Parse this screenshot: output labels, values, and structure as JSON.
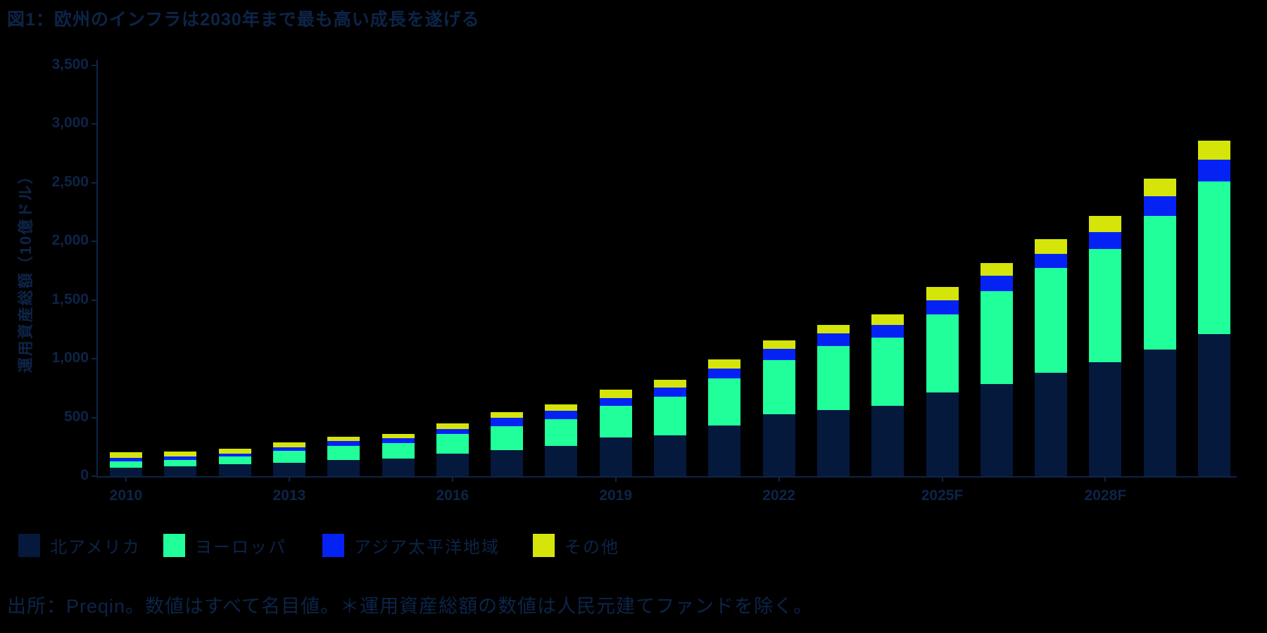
{
  "title": "図1：欧州のインフラは2030年まで最も高い成長を遂げる",
  "footer": "出所：Preqin。数値はすべて名目値。＊運用資産総額の数値は人民元建てファンドを除く。",
  "colors": {
    "background": "#000000",
    "text_navy": "#0d2448",
    "north_america": "#05193d",
    "europe": "#21ff9a",
    "asia_pacific": "#0522f5",
    "other": "#d6e509"
  },
  "chart_data": {
    "type": "bar",
    "stacked": true,
    "title": "図1：欧州のインフラは2030年まで最も高い成長を遂げる",
    "xlabel": "",
    "ylabel": "運用資産総額（10億ドル）",
    "ylim": [
      0,
      3500
    ],
    "grid": false,
    "legend_position": "bottom",
    "y_ticks": [
      {
        "value": 0,
        "label": "0"
      },
      {
        "value": 500,
        "label": "500"
      },
      {
        "value": 1000,
        "label": "1,000"
      },
      {
        "value": 1500,
        "label": "1,500"
      },
      {
        "value": 2000,
        "label": "2,000"
      },
      {
        "value": 2500,
        "label": "2,500"
      },
      {
        "value": 3000,
        "label": "3,000"
      },
      {
        "value": 3500,
        "label": "3,500"
      }
    ],
    "categories": [
      "2010",
      "2011",
      "2012",
      "2013",
      "2014",
      "2015",
      "2016",
      "2017",
      "2018",
      "2019",
      "2020",
      "2021",
      "2022",
      "2023",
      "2024",
      "2025F",
      "2026F",
      "2027F",
      "2028F",
      "2029F",
      "2030F"
    ],
    "x_axis_labels": [
      {
        "index": 0,
        "label": "2010"
      },
      {
        "index": 3,
        "label": "2013"
      },
      {
        "index": 6,
        "label": "2016"
      },
      {
        "index": 9,
        "label": "2019"
      },
      {
        "index": 12,
        "label": "2022"
      },
      {
        "index": 15,
        "label": "2025F"
      },
      {
        "index": 18,
        "label": "2028F"
      }
    ],
    "series": [
      {
        "name": "北アメリカ",
        "color": "#05193d",
        "values": [
          72,
          85,
          100,
          115,
          135,
          148,
          192,
          222,
          256,
          327,
          349,
          432,
          526,
          565,
          601,
          711,
          787,
          882,
          972,
          1081,
          1211
        ]
      },
      {
        "name": "ヨーロッパ",
        "color": "#21ff9a",
        "values": [
          54,
          55,
          70,
          100,
          122,
          134,
          166,
          205,
          229,
          270,
          326,
          399,
          465,
          542,
          580,
          669,
          788,
          889,
          962,
          1136,
          1300
        ]
      },
      {
        "name": "アジア太平洋地域",
        "color": "#0522f5",
        "values": [
          30,
          26,
          22,
          30,
          45,
          43,
          44,
          69,
          72,
          68,
          82,
          84,
          96,
          110,
          109,
          120,
          133,
          120,
          148,
          170,
          183
        ]
      },
      {
        "name": "その他",
        "color": "#d6e509",
        "values": [
          46,
          42,
          44,
          43,
          32,
          36,
          49,
          51,
          56,
          70,
          64,
          80,
          70,
          73,
          87,
          110,
          105,
          126,
          137,
          151,
          165
        ]
      }
    ]
  }
}
